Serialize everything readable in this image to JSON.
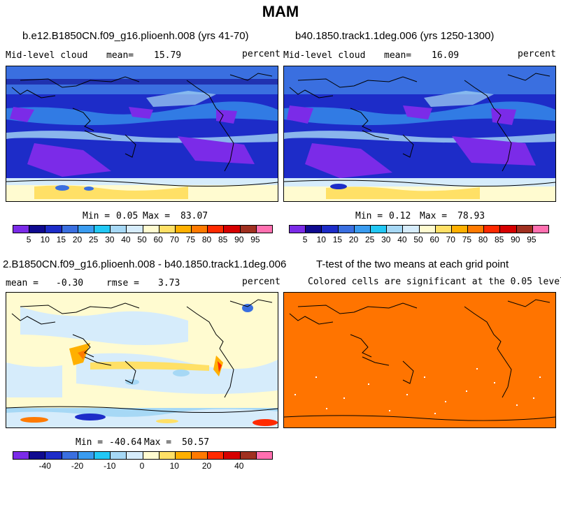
{
  "season": "MAM",
  "panels": {
    "top_left": {
      "title": "b.e12.B1850CN.f09_g16.plioenh.008 (yrs 41-70)",
      "variable": "Mid-level cloud",
      "mean_label": "mean=",
      "mean_value": "15.79",
      "units": "percent",
      "min_label": "Min =",
      "min_value": "0.05",
      "max_label": "Max =",
      "max_value": "83.07"
    },
    "top_right": {
      "title": "b40.1850.track1.1deg.006 (yrs 1250-1300)",
      "variable": "Mid-level cloud",
      "mean_label": "mean=",
      "mean_value": "16.09",
      "units": "percent",
      "min_label": "Min =",
      "min_value": "0.12",
      "max_label": "Max =",
      "max_value": "78.93"
    },
    "bottom_left": {
      "title": "2.B1850CN.f09_g16.plioenh.008 - b40.1850.track1.1deg.006",
      "mean_label": "mean =",
      "mean_value": "-0.30",
      "rmse_label": "rmse =",
      "rmse_value": "3.73",
      "units": "percent",
      "min_label": "Min =",
      "min_value": "-40.64",
      "max_label": "Max =",
      "max_value": "50.57"
    },
    "bottom_right": {
      "title": "T-test of the two means at each grid point",
      "subtitle": "Colored cells are significant at the 0.05 level"
    }
  },
  "colorbar_abs": {
    "colors": [
      "#7b2be8",
      "#0f0a8f",
      "#1d2cc8",
      "#3a6fe0",
      "#3a9cf0",
      "#22c8f5",
      "#a6d8f5",
      "#d6ecfb",
      "#fffbd0",
      "#ffe066",
      "#ffb000",
      "#ff7a00",
      "#ff2a00",
      "#d60000",
      "#a03020",
      "#ff70b0"
    ],
    "labels": [
      "5",
      "10",
      "15",
      "20",
      "25",
      "30",
      "40",
      "50",
      "60",
      "70",
      "75",
      "80",
      "85",
      "90",
      "95"
    ]
  },
  "colorbar_diff": {
    "colors": [
      "#7b2be8",
      "#0f0a8f",
      "#1d2cc8",
      "#3a6fe0",
      "#3a9cf0",
      "#22c8f5",
      "#a6d8f5",
      "#d6ecfb",
      "#fffbd0",
      "#ffe066",
      "#ffb000",
      "#ff7a00",
      "#ff2a00",
      "#d60000",
      "#a03020",
      "#ff70b0"
    ],
    "labels": [
      "-40",
      "-20",
      "-10",
      "0",
      "10",
      "20",
      "40"
    ]
  },
  "significance_color": "#ff7400"
}
